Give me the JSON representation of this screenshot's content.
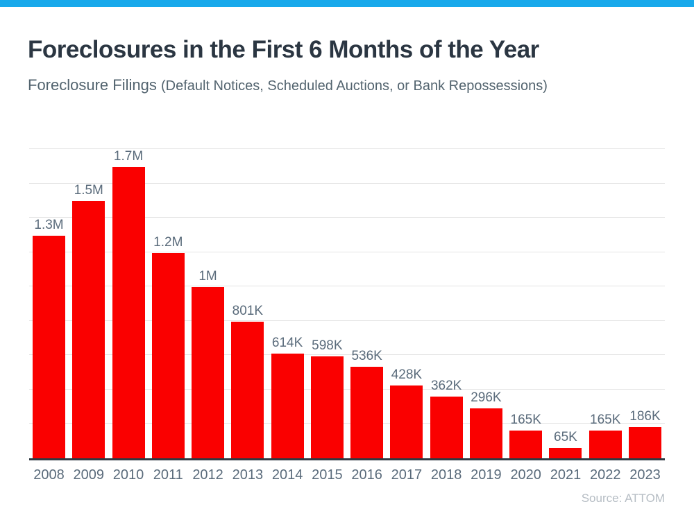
{
  "colors": {
    "accent_bar": "#18A9EB",
    "bar_red": "#FA0000",
    "label_slate": "#5A6B7B",
    "title_dark": "#2B3642",
    "gridline_gray": "#E4E4E4",
    "axis_dark": "#2F3942",
    "source_gray": "#B6BDC4"
  },
  "header": {
    "title": "Foreclosures in the First 6 Months of the Year",
    "subtitle_main": "Foreclosure Filings",
    "subtitle_paren": "(Default Notices, Scheduled Auctions, or Bank Repossessions)"
  },
  "chart_data": {
    "type": "bar",
    "title": "Foreclosures in the First 6 Months of the Year",
    "subtitle": "Foreclosure Filings (Default Notices, Scheduled Auctions, or Bank Repossessions)",
    "categories": [
      "2008",
      "2009",
      "2010",
      "2011",
      "2012",
      "2013",
      "2014",
      "2015",
      "2016",
      "2017",
      "2018",
      "2019",
      "2020",
      "2021",
      "2022",
      "2023"
    ],
    "values": [
      1300000,
      1500000,
      1700000,
      1200000,
      1000000,
      801000,
      614000,
      598000,
      536000,
      428000,
      362000,
      296000,
      165000,
      65000,
      165000,
      186000
    ],
    "labels": [
      "1.3M",
      "1.5M",
      "1.7M",
      "1.2M",
      "1M",
      "801K",
      "614K",
      "598K",
      "536K",
      "428K",
      "362K",
      "296K",
      "165K",
      "65K",
      "165K",
      "186K"
    ],
    "xlabel": "",
    "ylabel": "",
    "ylim": [
      0,
      1800000
    ],
    "grid_step": 200000,
    "grid": true,
    "legend_position": "none",
    "bar_color": "#FA0000",
    "label_color": "#5A6B7B",
    "source": "Source: ATTOM"
  }
}
